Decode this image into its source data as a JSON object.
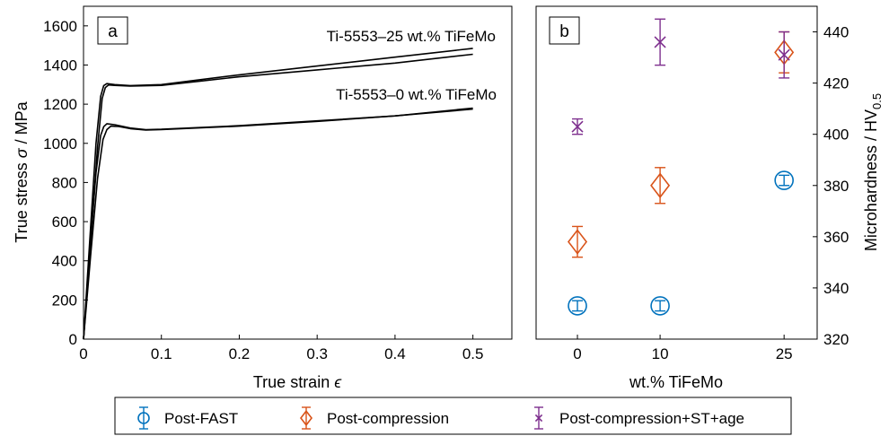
{
  "chart_data": [
    {
      "panel": "a",
      "type": "line",
      "xlabel": "True strain",
      "xlabel_symbol": "ϵ",
      "ylabel": "True stress",
      "ylabel_symbol": "σ",
      "ylabel_unit": "/ MPa",
      "xlim": [
        0,
        0.55
      ],
      "ylim": [
        0,
        1700
      ],
      "xticks": [
        "0",
        "0.1",
        "0.2",
        "0.3",
        "0.4",
        "0.5"
      ],
      "yticks": [
        "0",
        "200",
        "400",
        "600",
        "800",
        "1000",
        "1200",
        "1400",
        "1600"
      ],
      "grid": false,
      "annotations": [
        "Ti-5553–25 wt.% TiFeMo",
        "Ti-5553–0 wt.% TiFeMo"
      ],
      "series": [
        {
          "group": "25",
          "x": [
            0,
            0.008,
            0.016,
            0.022,
            0.026,
            0.03,
            0.04,
            0.06,
            0.1,
            0.15,
            0.2,
            0.3,
            0.4,
            0.5
          ],
          "y": [
            0,
            500,
            1000,
            1240,
            1295,
            1305,
            1300,
            1295,
            1300,
            1325,
            1350,
            1395,
            1440,
            1485
          ]
        },
        {
          "group": "25",
          "x": [
            0,
            0.009,
            0.018,
            0.024,
            0.028,
            0.032,
            0.04,
            0.06,
            0.1,
            0.15,
            0.2,
            0.3,
            0.4,
            0.5
          ],
          "y": [
            0,
            480,
            980,
            1230,
            1285,
            1298,
            1296,
            1292,
            1296,
            1318,
            1340,
            1375,
            1410,
            1455
          ]
        },
        {
          "group": "0",
          "x": [
            0,
            0.008,
            0.016,
            0.022,
            0.026,
            0.03,
            0.04,
            0.06,
            0.08,
            0.1,
            0.2,
            0.3,
            0.4,
            0.5
          ],
          "y": [
            0,
            450,
            850,
            1040,
            1085,
            1100,
            1095,
            1078,
            1070,
            1072,
            1090,
            1115,
            1140,
            1180
          ]
        },
        {
          "group": "0",
          "x": [
            0,
            0.009,
            0.018,
            0.025,
            0.03,
            0.035,
            0.045,
            0.06,
            0.08,
            0.1,
            0.2,
            0.3,
            0.4,
            0.5
          ],
          "y": [
            0,
            420,
            820,
            1020,
            1070,
            1088,
            1086,
            1075,
            1068,
            1070,
            1088,
            1112,
            1140,
            1175
          ]
        }
      ]
    },
    {
      "panel": "b",
      "type": "scatter",
      "xlabel": "wt.% TiFeMo",
      "ylabel": "Microhardness / HV",
      "ylabel_sub": "0.5",
      "y_axis_side": "right",
      "xlim": [
        -5,
        29
      ],
      "ylim": [
        320,
        450
      ],
      "xticks": [
        "0",
        "10",
        "25"
      ],
      "yticks": [
        "320",
        "340",
        "360",
        "380",
        "400",
        "420",
        "440"
      ],
      "grid": false,
      "legend_position": "bottom",
      "series": [
        {
          "name": "Post-FAST",
          "marker": "circle",
          "color": "#0072bd",
          "x": [
            0,
            10,
            25
          ],
          "y": [
            333,
            333,
            382
          ],
          "err": [
            2,
            2,
            2
          ]
        },
        {
          "name": "Post-compression",
          "marker": "diamond",
          "color": "#d95319",
          "x": [
            0,
            10,
            25
          ],
          "y": [
            358,
            380,
            432
          ],
          "err": [
            6,
            7,
            8
          ]
        },
        {
          "name": "Post-compression+ST+age",
          "marker": "x",
          "color": "#7e2f8e",
          "x": [
            0,
            10,
            25
          ],
          "y": [
            403,
            436,
            431
          ],
          "err": [
            3,
            9,
            9
          ]
        }
      ]
    }
  ]
}
